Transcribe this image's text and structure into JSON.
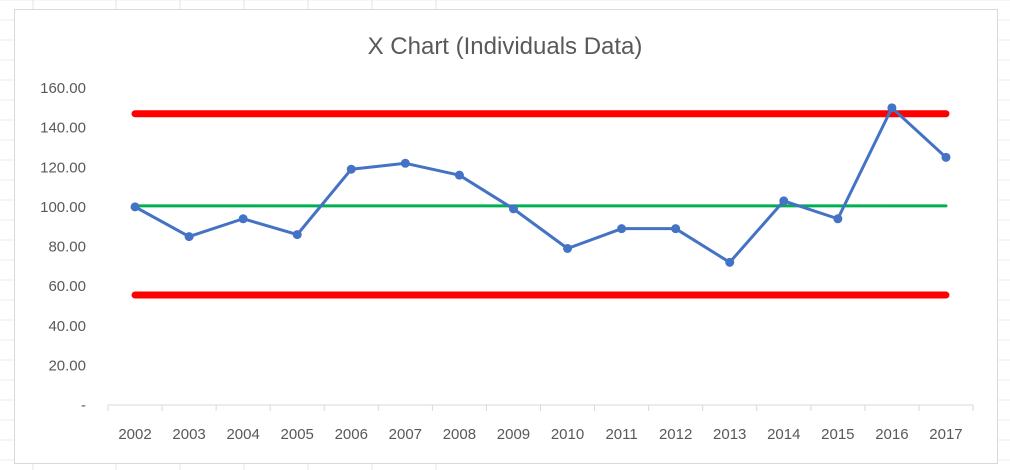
{
  "chart_data": {
    "type": "line",
    "title": "X Chart (Individuals Data)",
    "xlabel": "",
    "ylabel": "",
    "categories": [
      "2002",
      "2003",
      "2004",
      "2005",
      "2006",
      "2007",
      "2008",
      "2009",
      "2010",
      "2011",
      "2012",
      "2013",
      "2014",
      "2015",
      "2016",
      "2017"
    ],
    "y_tick_labels": [
      "-",
      "20.00",
      "40.00",
      "60.00",
      "80.00",
      "100.00",
      "120.00",
      "140.00",
      "160.00"
    ],
    "ylim": [
      0,
      160
    ],
    "series": [
      {
        "role": "data",
        "color": "#4472c4",
        "markers": true,
        "values": [
          100,
          85,
          94,
          86,
          119,
          122,
          116,
          99,
          79,
          89,
          89,
          72,
          103,
          94,
          150,
          125
        ]
      },
      {
        "role": "upper-limit",
        "color": "#ff0000",
        "values": [
          147,
          147,
          147,
          147,
          147,
          147,
          147,
          147,
          147,
          147,
          147,
          147,
          147,
          147,
          147,
          147
        ]
      },
      {
        "role": "average",
        "color": "#00b050",
        "values": [
          100.5,
          100.5,
          100.5,
          100.5,
          100.5,
          100.5,
          100.5,
          100.5,
          100.5,
          100.5,
          100.5,
          100.5,
          100.5,
          100.5,
          100.5,
          100.5
        ]
      },
      {
        "role": "lower-limit",
        "color": "#ff0000",
        "values": [
          55.5,
          55.5,
          55.5,
          55.5,
          55.5,
          55.5,
          55.5,
          55.5,
          55.5,
          55.5,
          55.5,
          55.5,
          55.5,
          55.5,
          55.5,
          55.5
        ]
      }
    ],
    "grid": false,
    "legend": "none"
  }
}
